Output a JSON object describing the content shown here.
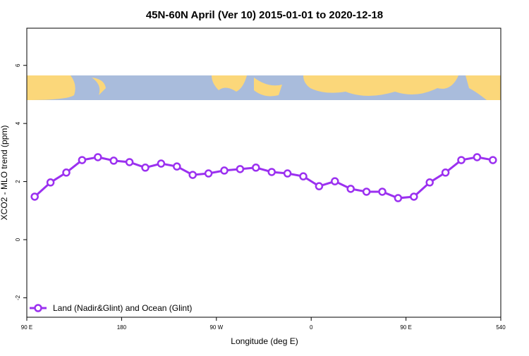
{
  "chart_data": {
    "type": "line",
    "title": "45N-60N April (Ver 10)   2015-01-01 to 2020-12-18",
    "x_label": "Longitude (deg E)",
    "y_label": "XCO2 - MLO trend (ppm)",
    "x": [
      97.5,
      112.5,
      127.5,
      142.5,
      157.5,
      172.5,
      187.5,
      202.5,
      217.5,
      232.5,
      247.5,
      262.5,
      277.5,
      292.5,
      307.5,
      322.5,
      337.5,
      352.5,
      367.5,
      382.5,
      397.5,
      412.5,
      427.5,
      442.5,
      457.5,
      472.5,
      487.5,
      502.5,
      517.5,
      532.5
    ],
    "series": [
      {
        "name": "Land (Nadir&Glint) and Ocean (Glint)",
        "color": "#9b30f0",
        "values": [
          1.48,
          1.97,
          2.31,
          2.74,
          2.84,
          2.72,
          2.67,
          2.48,
          2.62,
          2.52,
          2.23,
          2.28,
          2.38,
          2.43,
          2.48,
          2.33,
          2.28,
          2.18,
          1.84,
          2.01,
          1.75,
          1.65,
          1.65,
          1.43,
          1.48,
          1.97,
          2.31,
          2.74,
          2.84,
          2.74
        ]
      }
    ],
    "xlim": [
      90,
      540
    ],
    "xticks": [
      {
        "value": 90,
        "label": "90 E"
      },
      180,
      {
        "value": 270,
        "label": "90 W"
      },
      {
        "value": 360,
        "label": "0"
      },
      {
        "value": 450,
        "label": "90 E"
      },
      540
    ],
    "ylim": [
      -2.67,
      7.28
    ],
    "yticks": [
      -2,
      0,
      2,
      4,
      6
    ],
    "legend": "bottom-left"
  }
}
